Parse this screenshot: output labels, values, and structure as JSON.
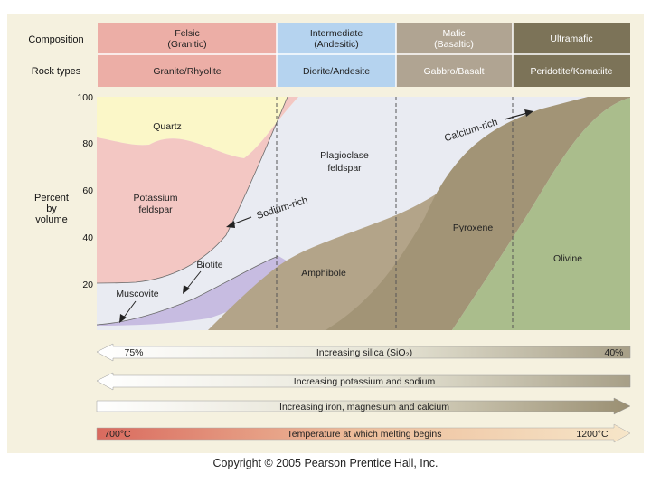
{
  "header": {
    "composition_label": "Composition",
    "rock_types_label": "Rock types",
    "columns": [
      {
        "composition_line1": "Felsic",
        "composition_line2": "(Granitic)",
        "rock_types": "Granite/Rhyolite",
        "color": "#ecaea6"
      },
      {
        "composition_line1": "Intermediate",
        "composition_line2": "(Andesitic)",
        "rock_types": "Diorite/Andesite",
        "color": "#b5d3ef"
      },
      {
        "composition_line1": "Mafic",
        "composition_line2": "(Basaltic)",
        "rock_types": "Gabbro/Basalt",
        "color": "#b0a492"
      },
      {
        "composition_line1": "Ultramafic",
        "composition_line2": "",
        "rock_types": "Peridotite/Komatiite",
        "color": "#7c7358"
      }
    ]
  },
  "axis": {
    "label_line1": "Percent",
    "label_line2": "by",
    "label_line3": "volume",
    "ticks": [
      "100",
      "80",
      "60",
      "40",
      "20"
    ]
  },
  "minerals": {
    "quartz": "Quartz",
    "potassium_line1": "Potassium",
    "potassium_line2": "feldspar",
    "plagioclase_line1": "Plagioclase",
    "plagioclase_line2": "feldspar",
    "calcium_rich": "Calcium-rich",
    "sodium_rich": "Sodium-rich",
    "biotite": "Biotite",
    "muscovite": "Muscovite",
    "amphibole": "Amphibole",
    "pyroxene": "Pyroxene",
    "olivine": "Olivine"
  },
  "arrows": {
    "silica_label": "Increasing silica (SiO₂)",
    "silica_left": "75%",
    "silica_right": "40%",
    "potassium_sodium": "Increasing potassium and sodium",
    "iron_magnesium_calcium": "Increasing iron, magnesium and calcium",
    "melting_label": "Temperature at which melting begins",
    "melting_left": "700°C",
    "melting_right": "1200°C"
  },
  "colors": {
    "panel_bg": "#f5f1df",
    "quartz": "#fbf7c8",
    "potassium": "#f3c7c3",
    "plagioclase": "#e8eaf1",
    "micas": "#c5b9e0",
    "amphibole": "#b5a58a",
    "pyroxene": "#a39678",
    "olivine": "#a9bc8c"
  },
  "copyright": "Copyright © 2005 Pearson Prentice Hall, Inc."
}
